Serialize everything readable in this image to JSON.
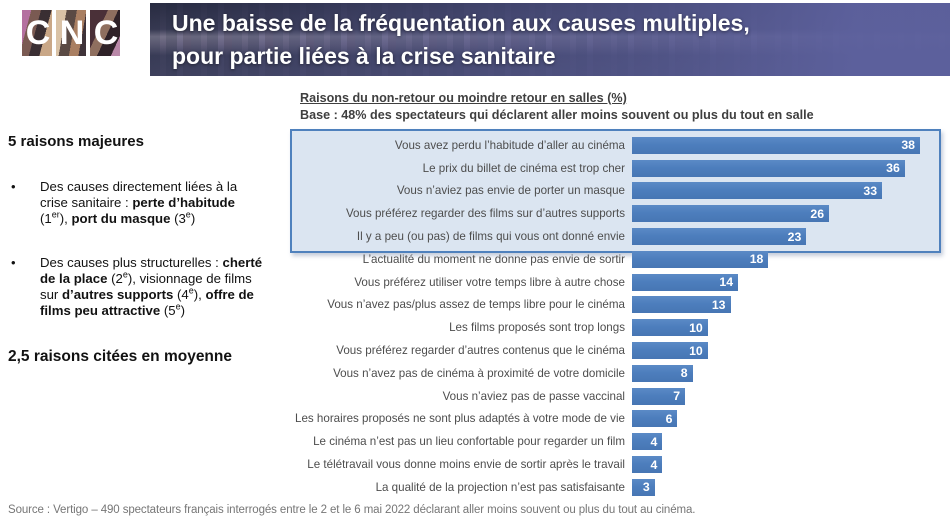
{
  "logo": {
    "letters": [
      "C",
      "N",
      "C"
    ]
  },
  "banner": {
    "title_line1": "Une baisse de la fréquentation aux causes multiples,",
    "title_line2": "pour partie liées à la crise sanitaire"
  },
  "left_panel": {
    "heading": "5 raisons majeures",
    "bullets": [
      {
        "segments": [
          {
            "t": "Des causes directement liées à la crise sanitaire : "
          },
          {
            "t": "perte d’habitude",
            "b": true
          },
          {
            "t": " (1"
          },
          {
            "t": "er",
            "sup": true
          },
          {
            "t": "), "
          },
          {
            "t": "port du masque",
            "b": true
          },
          {
            "t": " (3"
          },
          {
            "t": "e",
            "sup": true
          },
          {
            "t": ")"
          }
        ]
      },
      {
        "segments": [
          {
            "t": "Des causes plus structurelles : "
          },
          {
            "t": "cherté de la place",
            "b": true
          },
          {
            "t": " (2"
          },
          {
            "t": "e",
            "sup": true
          },
          {
            "t": "), visionnage de films sur "
          },
          {
            "t": "d’autres supports",
            "b": true
          },
          {
            "t": " (4"
          },
          {
            "t": "e",
            "sup": true
          },
          {
            "t": "), "
          },
          {
            "t": "offre de films peu attractive",
            "b": true
          },
          {
            "t": " (5"
          },
          {
            "t": "e",
            "sup": true
          },
          {
            "t": ")"
          }
        ]
      }
    ],
    "heading_2": "2,5 raisons citées en moyenne"
  },
  "chart_data": {
    "type": "bar",
    "orientation": "horizontal",
    "title": "Raisons du non-retour ou moindre retour en salles (%)",
    "subtitle": "Base : 48% des spectateurs qui déclarent aller moins souvent ou plus du tout en salle",
    "categories": [
      "Vous avez perdu l’habitude d’aller au cinéma",
      "Le prix du billet de cinéma est trop cher",
      "Vous n’aviez pas envie de porter un masque",
      "Vous préférez regarder des films sur d’autres supports",
      "Il y a peu (ou pas) de films qui vous ont donné envie",
      "L’actualité du moment ne donne pas envie de sortir",
      "Vous préférez utiliser votre temps libre à autre chose",
      "Vous n’avez pas/plus assez de temps libre pour le cinéma",
      "Les films proposés sont trop longs",
      "Vous préférez regarder d’autres contenus que le cinéma",
      "Vous n’avez pas de cinéma à proximité de votre domicile",
      "Vous n’aviez pas de passe vaccinal",
      "Les horaires proposés ne sont plus adaptés à votre mode de vie",
      "Le cinéma n’est pas un lieu confortable pour regarder un film",
      "Le télétravail vous donne moins envie de sortir après le travail",
      "La qualité de la projection n’est pas satisfaisante"
    ],
    "values": [
      38,
      36,
      33,
      26,
      23,
      18,
      14,
      13,
      10,
      10,
      8,
      7,
      6,
      4,
      4,
      3
    ],
    "highlighted_rows": [
      0,
      1,
      2,
      3,
      4
    ],
    "xlim": [
      0,
      40
    ],
    "grid": false,
    "legend": "none",
    "bar_color": "#4d7ebd",
    "highlight_fill": "#dbe5f1",
    "highlight_border": "#4f81bd"
  },
  "source": "Source :  Vertigo – 490 spectateurs français interrogés entre le 2 et le 6 mai 2022 déclarant aller moins souvent ou plus du tout au cinéma."
}
